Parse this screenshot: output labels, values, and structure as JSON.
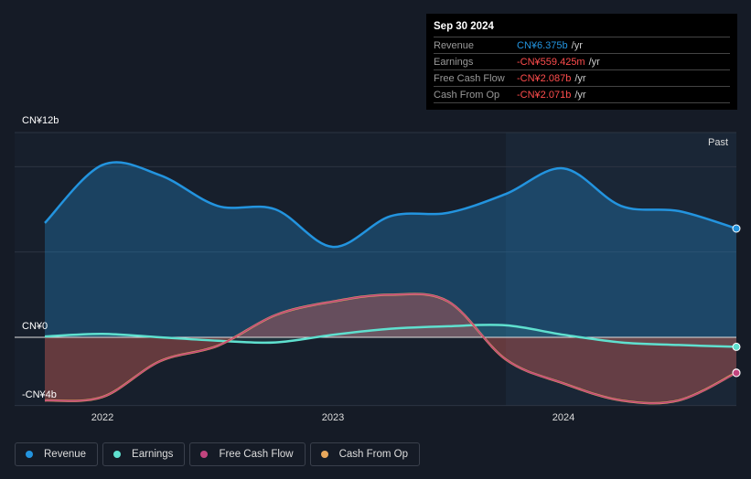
{
  "tooltip": {
    "date": "Sep 30 2024",
    "rows": [
      {
        "label": "Revenue",
        "value": "CN¥6.375b",
        "unit": "/yr",
        "color": "#2394df"
      },
      {
        "label": "Earnings",
        "value": "-CN¥559.425m",
        "unit": "/yr",
        "color": "#ff4d4d"
      },
      {
        "label": "Free Cash Flow",
        "value": "-CN¥2.087b",
        "unit": "/yr",
        "color": "#ff4d4d"
      },
      {
        "label": "Cash From Op",
        "value": "-CN¥2.071b",
        "unit": "/yr",
        "color": "#ff4d4d"
      }
    ]
  },
  "chart_data": {
    "type": "area",
    "x": [
      2021.75,
      2022,
      2022.25,
      2022.5,
      2022.75,
      2023,
      2023.25,
      2023.5,
      2023.75,
      2024,
      2024.25,
      2024.5,
      2024.75
    ],
    "ylim": [
      -4,
      12
    ],
    "y_ticks": [
      {
        "v": 12,
        "label": "CN¥12b"
      },
      {
        "v": 0,
        "label": "CN¥0"
      },
      {
        "v": -4,
        "label": "-CN¥4b"
      }
    ],
    "x_ticks": [
      {
        "v": 2022,
        "label": "2022"
      },
      {
        "v": 2023,
        "label": "2023"
      },
      {
        "v": 2024,
        "label": "2024"
      }
    ],
    "past_label": "Past",
    "past_start": 2023.75,
    "series": [
      {
        "name": "Revenue",
        "color": "#2394df",
        "values": [
          6.7,
          10.1,
          9.5,
          7.7,
          7.5,
          5.3,
          7.1,
          7.3,
          8.4,
          9.9,
          7.7,
          7.4,
          6.375
        ]
      },
      {
        "name": "Earnings",
        "color": "#5fe0cf",
        "values": [
          0.05,
          0.2,
          0,
          -0.2,
          -0.3,
          0.15,
          0.5,
          0.65,
          0.7,
          0.15,
          -0.3,
          -0.45,
          -0.559
        ]
      },
      {
        "name": "Free Cash Flow",
        "color": "#c2457f",
        "values": [
          -3.7,
          -3.5,
          -1.4,
          -0.5,
          1.3,
          2.1,
          2.5,
          2.1,
          -1.3,
          -2.7,
          -3.7,
          -3.7,
          -2.087
        ]
      },
      {
        "name": "Cash From Op",
        "color": "#e8a85c",
        "values": [
          -3.7,
          -3.5,
          -1.4,
          -0.5,
          1.3,
          2.1,
          2.5,
          2.1,
          -1.3,
          -2.7,
          -3.7,
          -3.7,
          -2.071
        ]
      }
    ]
  }
}
